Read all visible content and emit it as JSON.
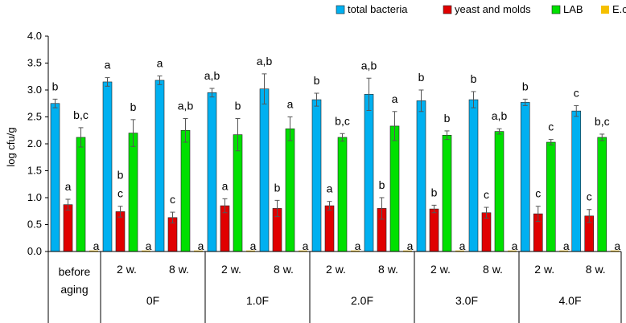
{
  "chart_data": {
    "type": "bar",
    "ylabel": "log cfu/g",
    "ylim": [
      0,
      4
    ],
    "yticks": [
      "0.0",
      "0.5",
      "1.0",
      "1.5",
      "2.0",
      "2.5",
      "3.0",
      "3.5",
      "4.0"
    ],
    "legend_position": "top-right",
    "groups": [
      {
        "label": "before aging",
        "label_lines": [
          "before",
          "aging"
        ],
        "subs": [
          ""
        ]
      },
      {
        "label": "0F",
        "subs": [
          "2 w.",
          "8 w."
        ]
      },
      {
        "label": "1.0F",
        "subs": [
          "2 w.",
          "8 w."
        ]
      },
      {
        "label": "2.0F",
        "subs": [
          "2 w.",
          "8 w."
        ]
      },
      {
        "label": "3.0F",
        "subs": [
          "2 w.",
          "8 w."
        ]
      },
      {
        "label": "4.0F",
        "subs": [
          "2 w.",
          "8 w."
        ]
      }
    ],
    "series": [
      {
        "name": "total bacteria",
        "color": "#00B0F0",
        "values": [
          2.75,
          3.15,
          3.18,
          2.95,
          3.02,
          2.82,
          2.92,
          2.8,
          2.82,
          2.77,
          2.61
        ],
        "errors": [
          0.08,
          0.08,
          0.08,
          0.08,
          0.28,
          0.12,
          0.3,
          0.2,
          0.15,
          0.06,
          0.1
        ],
        "labels": [
          "b",
          "a",
          "a",
          "a,b",
          "a,b",
          "b",
          "a,b",
          "b",
          "b",
          "b",
          "c"
        ]
      },
      {
        "name": "yeast and molds",
        "color": "#E00000",
        "values": [
          0.87,
          0.74,
          0.63,
          0.85,
          0.8,
          0.85,
          0.8,
          0.79,
          0.72,
          0.7,
          0.66
        ],
        "errors": [
          0.1,
          0.1,
          0.1,
          0.13,
          0.15,
          0.08,
          0.2,
          0.07,
          0.1,
          0.14,
          0.12
        ],
        "labels": [
          "a",
          "b\nc",
          "c",
          "a",
          "b",
          "a",
          "b",
          "b",
          "c",
          "c",
          "c"
        ]
      },
      {
        "name": "LAB",
        "color": "#00E000",
        "values": [
          2.12,
          2.2,
          2.25,
          2.17,
          2.28,
          2.12,
          2.33,
          2.16,
          2.23,
          2.03,
          2.12
        ],
        "errors": [
          0.18,
          0.25,
          0.22,
          0.3,
          0.22,
          0.07,
          0.27,
          0.08,
          0.05,
          0.05,
          0.06
        ],
        "labels": [
          "b,c",
          "b",
          "a,b",
          "b",
          "a",
          "b,c",
          "a",
          "b",
          "a,b",
          "c",
          "b,c"
        ]
      },
      {
        "name": "E.coli",
        "color": "#F5C000",
        "values": [
          0.01,
          0.01,
          0.01,
          0.01,
          0.01,
          0.01,
          0.01,
          0.01,
          0.01,
          0.01,
          0.01
        ],
        "errors": [
          0,
          0,
          0,
          0,
          0,
          0,
          0,
          0,
          0,
          0,
          0
        ],
        "labels": [
          "a",
          "a",
          "a",
          "a",
          "a",
          "a",
          "a",
          "a",
          "a",
          "a",
          "a"
        ]
      }
    ]
  }
}
